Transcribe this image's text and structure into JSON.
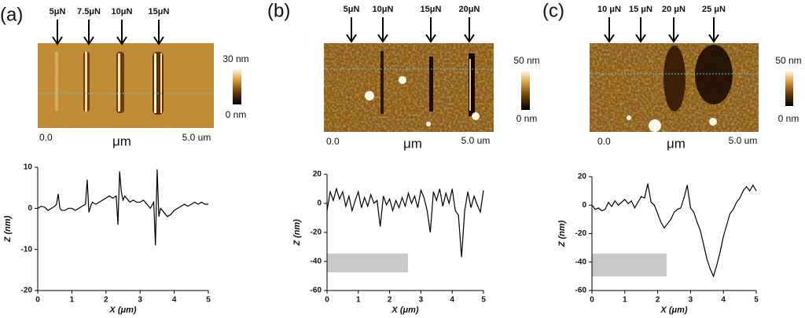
{
  "panels": [
    {
      "label": "(a)",
      "forces": [
        "5μN",
        "7.5μN",
        "10μN",
        "15μN"
      ],
      "colorbar": [
        "30 nm",
        "0 nm"
      ],
      "scale": [
        "0.0",
        "μm",
        "5.0 um"
      ]
    },
    {
      "label": "(b)",
      "forces": [
        "5μN",
        "10μN",
        "15μN",
        "20μN"
      ],
      "colorbar": [
        "50 nm",
        "0 nm"
      ],
      "scale": [
        "0.0",
        "μm",
        "5.0 um"
      ]
    },
    {
      "label": "(c)",
      "forces": [
        "10 μN",
        "15 μN",
        "20 μN",
        "25 μN"
      ],
      "colorbar": [
        "50 nm",
        "0 nm"
      ],
      "scale": [
        "0.0",
        "μm",
        "5.0 um"
      ]
    }
  ],
  "chart_data": [
    {
      "type": "line",
      "xlabel": "X (μm)",
      "ylabel": "Z (nm)",
      "x": [
        0,
        0.1,
        0.2,
        0.3,
        0.4,
        0.5,
        0.55,
        0.6,
        0.65,
        0.7,
        0.8,
        0.9,
        1.0,
        1.1,
        1.2,
        1.3,
        1.4,
        1.45,
        1.5,
        1.55,
        1.6,
        1.7,
        1.8,
        1.9,
        2.0,
        2.1,
        2.2,
        2.3,
        2.35,
        2.4,
        2.45,
        2.5,
        2.55,
        2.6,
        2.7,
        2.8,
        2.9,
        3.0,
        3.1,
        3.2,
        3.3,
        3.4,
        3.45,
        3.5,
        3.55,
        3.6,
        3.7,
        3.8,
        3.9,
        4.0,
        4.1,
        4.2,
        4.3,
        4.4,
        4.5,
        4.6,
        4.7,
        4.8,
        4.9,
        5.0
      ],
      "series": [
        {
          "color": "#000000",
          "values": [
            0,
            0.5,
            0.3,
            -0.5,
            0,
            0.5,
            1,
            3.5,
            0,
            -0.5,
            -0.5,
            0,
            0,
            -0.5,
            0,
            0.5,
            1,
            7,
            -1,
            0.5,
            1.5,
            1,
            1.5,
            2,
            2.5,
            3,
            2.5,
            3,
            -4,
            9,
            4,
            2,
            3,
            2.5,
            1.5,
            2,
            1.5,
            1.5,
            2,
            1,
            0,
            1.5,
            -9,
            9.5,
            -2,
            0,
            -1,
            -2,
            -1.5,
            -0.5,
            0,
            0.5,
            1,
            0.5,
            1,
            1.5,
            1,
            1.5,
            1,
            1
          ]
        }
      ],
      "xlim": [
        0,
        5
      ],
      "ylim": [
        -20,
        10
      ],
      "xticks": [
        0,
        1,
        2,
        3,
        4,
        5
      ],
      "yticks": [
        -20,
        -10,
        0,
        10
      ]
    },
    {
      "type": "line",
      "xlabel": "X (μm)",
      "ylabel": "Z (nm)",
      "x": [
        0,
        0.1,
        0.2,
        0.3,
        0.4,
        0.5,
        0.6,
        0.7,
        0.8,
        0.9,
        1.0,
        1.1,
        1.2,
        1.3,
        1.4,
        1.5,
        1.6,
        1.7,
        1.8,
        1.9,
        2.0,
        2.1,
        2.2,
        2.3,
        2.4,
        2.5,
        2.6,
        2.7,
        2.8,
        2.9,
        3.0,
        3.1,
        3.2,
        3.3,
        3.4,
        3.5,
        3.6,
        3.7,
        3.8,
        3.9,
        4.0,
        4.1,
        4.2,
        4.3,
        4.4,
        4.5,
        4.6,
        4.7,
        4.8,
        4.9,
        5.0
      ],
      "series": [
        {
          "color": "#000000",
          "values": [
            -5,
            8,
            2,
            10,
            3,
            8,
            -2,
            5,
            -5,
            2,
            8,
            -3,
            4,
            -2,
            6,
            0,
            2,
            -16,
            5,
            -1,
            3,
            -5,
            2,
            -3,
            4,
            -2,
            7,
            0,
            5,
            -3,
            9,
            4,
            -5,
            -20,
            8,
            2,
            10,
            -2,
            7,
            0,
            10,
            -5,
            -8,
            -37,
            -5,
            8,
            -3,
            5,
            -1,
            -6,
            9
          ]
        }
      ],
      "xlim": [
        0,
        5
      ],
      "ylim": [
        -60,
        20
      ],
      "xticks": [
        0,
        1,
        2,
        3,
        4,
        5
      ],
      "yticks": [
        -60,
        -40,
        -20,
        0,
        20
      ]
    },
    {
      "type": "line",
      "xlabel": "X (μm)",
      "ylabel": "Z (nm)",
      "x": [
        0,
        0.1,
        0.2,
        0.3,
        0.4,
        0.5,
        0.6,
        0.7,
        0.8,
        0.9,
        1.0,
        1.1,
        1.2,
        1.3,
        1.4,
        1.5,
        1.6,
        1.7,
        1.8,
        1.9,
        2.0,
        2.1,
        2.2,
        2.3,
        2.4,
        2.5,
        2.6,
        2.7,
        2.8,
        2.9,
        3.0,
        3.1,
        3.2,
        3.3,
        3.4,
        3.5,
        3.6,
        3.7,
        3.8,
        3.9,
        4.0,
        4.1,
        4.2,
        4.3,
        4.4,
        4.5,
        4.6,
        4.7,
        4.8,
        4.9,
        5.0
      ],
      "series": [
        {
          "color": "#000000",
          "values": [
            0,
            -3,
            -2,
            -4,
            -3,
            2,
            -1,
            3,
            0,
            2,
            4,
            1,
            3,
            -2,
            2,
            6,
            5,
            15,
            2,
            0,
            -6,
            -12,
            -16,
            -13,
            -10,
            -5,
            -3,
            -2,
            5,
            14,
            -2,
            -5,
            -12,
            -18,
            -28,
            -38,
            -45,
            -50,
            -42,
            -33,
            -22,
            -14,
            -6,
            -3,
            2,
            5,
            10,
            13,
            10,
            14,
            10
          ]
        }
      ],
      "xlim": [
        0,
        5
      ],
      "ylim": [
        -60,
        20
      ],
      "xticks": [
        0,
        1,
        2,
        3,
        4,
        5
      ],
      "yticks": [
        -60,
        -40,
        -20,
        0,
        20
      ]
    }
  ]
}
